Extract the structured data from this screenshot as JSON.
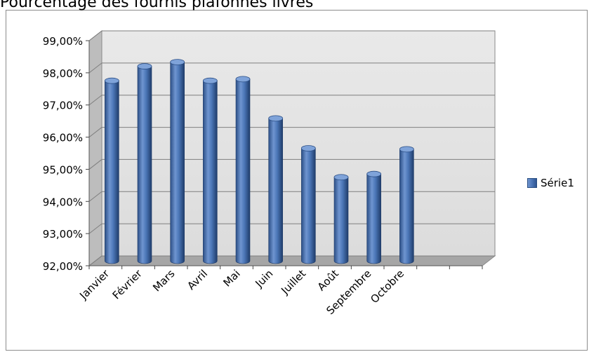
{
  "title": "Pourcentage des fournis plafonnés livrés",
  "chart_data": {
    "type": "bar",
    "title": "Pourcentage des fournis plafonnés livrés",
    "categories": [
      "Janvier",
      "Février",
      "Mars",
      "Avril",
      "Mai",
      "Juin",
      "Juillet",
      "Août",
      "Septembre",
      "Octobre"
    ],
    "series": [
      {
        "name": "Série1",
        "values": [
          97.6,
          98.05,
          98.18,
          97.6,
          97.65,
          96.43,
          95.5,
          94.6,
          94.7,
          95.47
        ]
      }
    ],
    "ylim": [
      92,
      99
    ],
    "yticks": [
      "92,00%",
      "93,00%",
      "94,00%",
      "95,00%",
      "96,00%",
      "97,00%",
      "98,00%",
      "99,00%"
    ],
    "grid": true,
    "legend": "right",
    "colors": {
      "bar": "#4a74b5",
      "wall": "#e3e3e3",
      "floor": "#a6a6a6",
      "gridline": "#7f7f7f"
    }
  }
}
